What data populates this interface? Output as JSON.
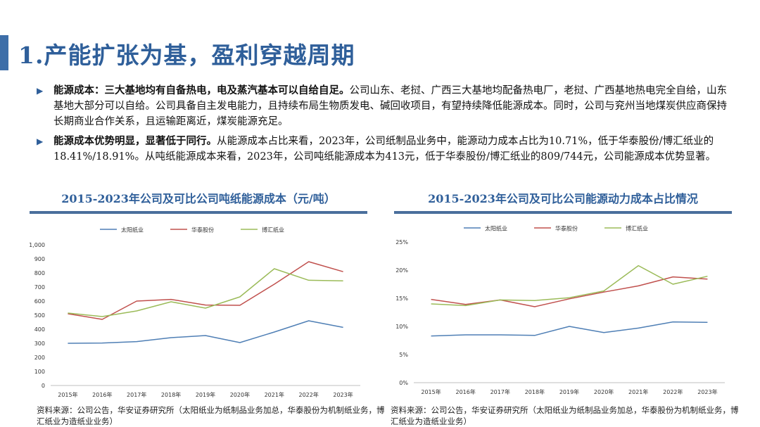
{
  "header": {
    "title": "1.产能扩张为基，盈利穿越周期"
  },
  "bullets": [
    {
      "lead": "能源成本：三大基地均有自备热电，电及蒸汽基本可以自给自足。",
      "body": "公司山东、老挝、广西三大基地均配备热电厂，老挝、广西基地热电完全自给，山东基地大部分可以自给。公司具备自主发电能力，且持续布局生物质发电、碱回收项目，有望持续降低能源成本。同时，公司与兖州当地煤炭供应商保持长期商业合作关系，且运输距离近，煤炭能源充足。"
    },
    {
      "lead": "能源成本优势明显，显著低于同行。",
      "body": "从能源成本占比来看，2023年，公司纸制品业务中，能源动力成本占比为10.71%，低于华泰股份/博汇纸业的18.41%/18.91%。从吨纸能源成本来看，2023年，公司吨纸能源成本为413元，低于华泰股份/博汇纸业的809/744元，公司能源成本优势显著。"
    }
  ],
  "sources": {
    "left": "资料来源：公司公告，华安证券研究所（太阳纸业为纸制品业务加总，华泰股份为机制纸业务，博汇纸业为造纸业业务）",
    "right": "资料来源：公司公告，华安证券研究所（太阳纸业为纸制品业务加总，华泰股份为机制纸业务，博汇纸业为造纸业业务）"
  },
  "colors": {
    "title": "#2f5f9a",
    "series": [
      "#4f7fb5",
      "#c0504d",
      "#9bbb59"
    ]
  },
  "chart_data": [
    {
      "type": "line",
      "title": "2015-2023年公司及可比公司吨纸能源成本（元/吨）",
      "categories": [
        "2015年",
        "2016年",
        "2017年",
        "2018年",
        "2019年",
        "2020年",
        "2021年",
        "2022年",
        "2023年"
      ],
      "ylim": [
        0,
        1000
      ],
      "yticks": [
        0,
        100,
        200,
        300,
        400,
        500,
        600,
        700,
        800,
        900,
        1000
      ],
      "ytick_labels": [
        "0",
        "100",
        "200",
        "300",
        "400",
        "500",
        "600",
        "700",
        "800",
        "900",
        "1,000"
      ],
      "legend_position": "top",
      "grid": false,
      "series": [
        {
          "name": "太阳纸业",
          "values": [
            300,
            302,
            312,
            340,
            355,
            305,
            380,
            460,
            413
          ]
        },
        {
          "name": "华泰股份",
          "values": [
            510,
            470,
            600,
            612,
            572,
            570,
            720,
            880,
            809
          ]
        },
        {
          "name": "博汇纸业",
          "values": [
            515,
            490,
            530,
            595,
            550,
            630,
            830,
            748,
            744
          ]
        }
      ]
    },
    {
      "type": "line",
      "title": "2015-2023年公司及可比公司能源动力成本占比情况",
      "categories": [
        "2015年",
        "2016年",
        "2017年",
        "2018年",
        "2019年",
        "2020年",
        "2021年",
        "2022年",
        "2023年"
      ],
      "ylim": [
        0,
        25
      ],
      "yticks": [
        0,
        5,
        10,
        15,
        20,
        25
      ],
      "ytick_labels": [
        "0%",
        "5%",
        "10%",
        "15%",
        "20%",
        "25%"
      ],
      "legend_position": "top",
      "grid": false,
      "series": [
        {
          "name": "太阳纸业",
          "values": [
            8.3,
            8.5,
            8.5,
            8.4,
            10.0,
            8.9,
            9.7,
            10.8,
            10.71
          ]
        },
        {
          "name": "华泰股份",
          "values": [
            14.8,
            13.9,
            14.7,
            13.5,
            14.9,
            16.1,
            17.2,
            18.8,
            18.41
          ]
        },
        {
          "name": "博汇纸业",
          "values": [
            14.0,
            13.7,
            14.7,
            14.6,
            15.1,
            16.3,
            20.8,
            17.5,
            18.91
          ]
        }
      ]
    }
  ]
}
